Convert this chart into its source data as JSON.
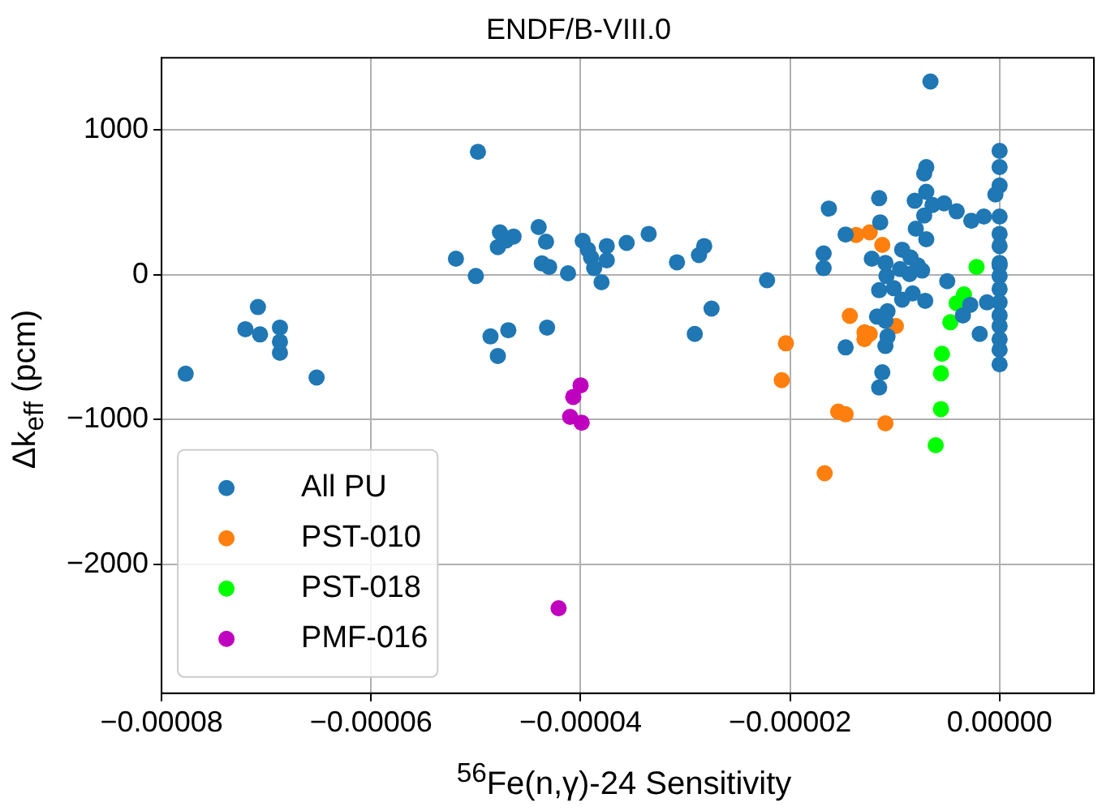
{
  "chart_data": {
    "type": "scatter",
    "title": "ENDF/B-VIII.0",
    "xlabel": "$^{56}$Fe(n,γ)-24 Sensitivity",
    "ylabel": "Δk$_{eff}$ (pcm)",
    "xlim": [
      -8e-05,
      9e-06
    ],
    "ylim": [
      -2890,
      1500
    ],
    "xticks": [
      {
        "value": -8e-05,
        "label": "−0.00008"
      },
      {
        "value": -6e-05,
        "label": "−0.00006"
      },
      {
        "value": -4e-05,
        "label": "−0.00004"
      },
      {
        "value": -2e-05,
        "label": "−0.00002"
      },
      {
        "value": 0,
        "label": "0.00000"
      }
    ],
    "yticks": [
      {
        "value": -2000,
        "label": "−2000"
      },
      {
        "value": -1000,
        "label": "−1000"
      },
      0,
      1000
    ],
    "grid": true,
    "legend": "bottom left",
    "marker": "circle",
    "series": [
      {
        "name": "All PU",
        "color": "#1f77b4",
        "x": [
          -7.77e-05,
          -7.08e-05,
          -7.2e-05,
          -7.06e-05,
          -6.87e-05,
          -6.87e-05,
          -6.87e-05,
          -6.52e-05,
          -4.98e-05,
          -5.19e-05,
          -5e-05,
          -4.77e-05,
          -4.79e-05,
          -4.64e-05,
          -4.71e-05,
          -4.4e-05,
          -4.33e-05,
          -4.37e-05,
          -4.3e-05,
          -4.12e-05,
          -3.98e-05,
          -3.93e-05,
          -3.9e-05,
          -3.87e-05,
          -3.75e-05,
          -3.75e-05,
          -3.8e-05,
          -3.56e-05,
          -4.86e-05,
          -4.69e-05,
          -4.79e-05,
          -4.32e-05,
          -6.6e-06,
          -3.35e-05,
          -3.08e-05,
          -2.87e-05,
          -2.82e-05,
          -2.22e-05,
          -1.63e-05,
          -1.68e-05,
          -1.68e-05,
          -1.47e-05,
          -1.15e-05,
          -1.14e-05,
          -1.22e-05,
          -1.09e-05,
          -7e-06,
          -7.2e-06,
          -7e-06,
          -8.1e-06,
          -6.4e-06,
          -5.3e-06,
          -7.2e-06,
          -8e-06,
          -7e-06,
          -9.3e-06,
          -8.5e-06,
          -7.8e-06,
          -4.1e-06,
          -2.7e-06,
          -1.5e-06,
          -5e-06,
          0,
          0,
          0,
          -4e-07,
          0,
          0,
          0,
          0,
          -2.75e-05,
          -2.91e-05,
          -1.08e-05,
          -1.15e-05,
          -1.01e-05,
          -9.3e-06,
          -8.3e-06,
          -7.1e-06,
          -1.17e-05,
          -1.07e-05,
          -1.09e-05,
          -1.07e-05,
          -1.09e-05,
          -1.47e-05,
          -1.12e-05,
          -1.15e-05,
          -9.5e-06,
          -8.6e-06,
          -7.4e-06,
          -3.5e-06,
          -2.8e-06,
          -1.9e-06,
          -1.2e-06,
          0,
          0,
          0,
          0,
          0,
          0,
          0,
          0,
          0
        ],
        "values": [
          -683,
          -222,
          -375,
          -411,
          -364,
          -462,
          -538,
          -709,
          850,
          112,
          -8,
          294,
          192,
          265,
          238,
          330,
          229,
          80,
          55,
          11,
          235,
          174,
          120,
          47,
          199,
          101,
          -51,
          221,
          -425,
          -382,
          -560,
          -364,
          1336,
          283,
          87,
          137,
          199,
          -37,
          458,
          148,
          47,
          279,
          530,
          363,
          112,
          83,
          745,
          700,
          574,
          512,
          483,
          494,
          410,
          319,
          246,
          174,
          120,
          65,
          439,
          374,
          403,
          -44,
          857,
          745,
          617,
          556,
          403,
          283,
          199,
          65,
          -233,
          -408,
          -8,
          -106,
          -92,
          -171,
          -128,
          -179,
          -288,
          -251,
          -316,
          -425,
          -491,
          -501,
          -673,
          -778,
          40,
          5,
          30,
          -280,
          -207,
          -408,
          -190,
          83,
          -8,
          -98,
          -190,
          -280,
          -353,
          -444,
          -517,
          -618
        ]
      },
      {
        "name": "PST-010",
        "color": "#ff7f0e",
        "x": [
          -1.37e-05,
          -1.24e-05,
          -1.12e-05,
          -1.43e-05,
          -1.29e-05,
          -1.24e-05,
          -1.29e-05,
          -9.9e-06,
          -2.04e-05,
          -2.08e-05,
          -1.54e-05,
          -1.47e-05,
          -1.09e-05,
          -1.67e-05
        ],
        "values": [
          276,
          294,
          207,
          -283,
          -397,
          -408,
          -444,
          -353,
          -473,
          -727,
          -945,
          -963,
          -1025,
          -1370
        ]
      },
      {
        "name": "PST-018",
        "color": "#00ff00",
        "x": [
          -2.2e-06,
          -3.4e-06,
          -4.1e-06,
          -4.7e-06,
          -5.5e-06,
          -5.6e-06,
          -5.6e-06,
          -6.1e-06
        ],
        "values": [
          55,
          -135,
          -196,
          -327,
          -545,
          -680,
          -927,
          -1177
        ]
      },
      {
        "name": "PMF-016",
        "color": "#bf00bf",
        "x": [
          -4e-05,
          -4.07e-05,
          -4.1e-05,
          -3.99e-05,
          -4.21e-05
        ],
        "values": [
          -763,
          -843,
          -981,
          -1021,
          -2303
        ]
      }
    ]
  }
}
